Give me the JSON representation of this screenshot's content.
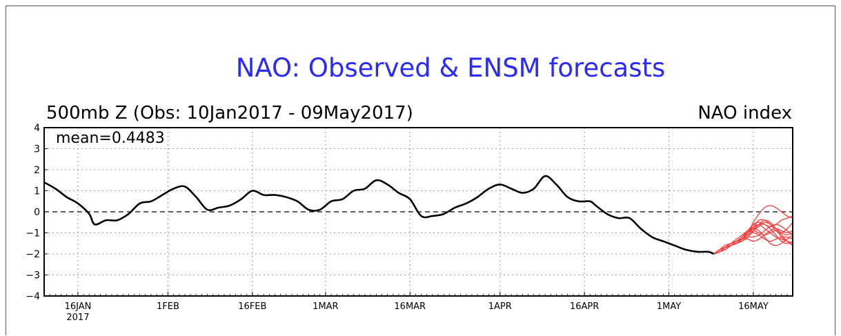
{
  "chart_data": {
    "type": "line",
    "title": "NAO: Observed & ENSM forecasts",
    "subtitle_left": "500mb Z (Obs: 10Jan2017 - 09May2017)",
    "subtitle_right": "NAO index",
    "annotation": "mean=0.4483",
    "ylim": [
      -4,
      4
    ],
    "yticks": [
      "4",
      "3",
      "2",
      "1",
      "0",
      "−1",
      "−2",
      "−3",
      "−4"
    ],
    "ytick_values": [
      4,
      3,
      2,
      1,
      0,
      -1,
      -2,
      -3,
      -4
    ],
    "xlim": [
      "2017-01-10",
      "2017-05-23"
    ],
    "xticks": [
      {
        "date": "2017-01-16",
        "label": "16JAN",
        "sublabel": "2017"
      },
      {
        "date": "2017-02-01",
        "label": "1FEB",
        "sublabel": ""
      },
      {
        "date": "2017-02-16",
        "label": "16FEB",
        "sublabel": ""
      },
      {
        "date": "2017-03-01",
        "label": "1MAR",
        "sublabel": ""
      },
      {
        "date": "2017-03-16",
        "label": "16MAR",
        "sublabel": ""
      },
      {
        "date": "2017-04-01",
        "label": "1APR",
        "sublabel": ""
      },
      {
        "date": "2017-04-16",
        "label": "16APR",
        "sublabel": ""
      },
      {
        "date": "2017-05-01",
        "label": "1MAY",
        "sublabel": ""
      },
      {
        "date": "2017-05-16",
        "label": "16MAY",
        "sublabel": ""
      }
    ],
    "grid": true,
    "zero_line": "dashed",
    "colors": {
      "title": "#2a2aff",
      "observed": "#000000",
      "forecast": "#ff3b3b",
      "grid": "#9a9a9a"
    },
    "series": [
      {
        "x": [
          "2017-01-10",
          "2017-01-12",
          "2017-01-14",
          "2017-01-16",
          "2017-01-18",
          "2017-01-19",
          "2017-01-21",
          "2017-01-23",
          "2017-01-25",
          "2017-01-27",
          "2017-01-29",
          "2017-01-31",
          "2017-02-02",
          "2017-02-04",
          "2017-02-06",
          "2017-02-08",
          "2017-02-10",
          "2017-02-12",
          "2017-02-14",
          "2017-02-16",
          "2017-02-18",
          "2017-02-20",
          "2017-02-22",
          "2017-02-24",
          "2017-02-26",
          "2017-02-28",
          "2017-03-02",
          "2017-03-04",
          "2017-03-06",
          "2017-03-08",
          "2017-03-10",
          "2017-03-12",
          "2017-03-14",
          "2017-03-16",
          "2017-03-18",
          "2017-03-20",
          "2017-03-22",
          "2017-03-24",
          "2017-03-26",
          "2017-03-28",
          "2017-03-30",
          "2017-04-01",
          "2017-04-03",
          "2017-04-05",
          "2017-04-07",
          "2017-04-09",
          "2017-04-11",
          "2017-04-13",
          "2017-04-15",
          "2017-04-17",
          "2017-04-18",
          "2017-04-20",
          "2017-04-22",
          "2017-04-24",
          "2017-04-26",
          "2017-04-28",
          "2017-04-30",
          "2017-05-02",
          "2017-05-04",
          "2017-05-06",
          "2017-05-08",
          "2017-05-09"
        ],
        "values": [
          1.4,
          1.1,
          0.7,
          0.4,
          -0.1,
          -0.6,
          -0.4,
          -0.4,
          -0.1,
          0.4,
          0.5,
          0.8,
          1.1,
          1.2,
          0.7,
          0.1,
          0.2,
          0.3,
          0.6,
          1.0,
          0.8,
          0.8,
          0.7,
          0.5,
          0.1,
          0.1,
          0.5,
          0.6,
          1.0,
          1.1,
          1.5,
          1.3,
          0.9,
          0.6,
          -0.2,
          -0.2,
          -0.1,
          0.2,
          0.4,
          0.7,
          1.1,
          1.3,
          1.1,
          0.9,
          1.1,
          1.7,
          1.3,
          0.7,
          0.5,
          0.5,
          0.3,
          -0.1,
          -0.3,
          -0.3,
          -0.8,
          -1.2,
          -1.4,
          -1.6,
          -1.8,
          -1.9,
          -1.9,
          -2.0
        ]
      },
      {
        "x": [
          "2017-05-09",
          "2017-05-10",
          "2017-05-11",
          "2017-05-12",
          "2017-05-13",
          "2017-05-14",
          "2017-05-15",
          "2017-05-16",
          "2017-05-17",
          "2017-05-18",
          "2017-05-19",
          "2017-05-20",
          "2017-05-21",
          "2017-05-22",
          "2017-05-23"
        ],
        "members": [
          [
            -2.0,
            -1.8,
            -1.7,
            -1.6,
            -1.5,
            -1.3,
            -1.0,
            -0.5,
            -0.1,
            0.2,
            0.3,
            0.2,
            0.0,
            -0.2,
            -0.3
          ],
          [
            -2.0,
            -1.8,
            -1.7,
            -1.6,
            -1.5,
            -1.2,
            -0.9,
            -0.6,
            -0.5,
            -0.6,
            -0.7,
            -0.6,
            -0.4,
            -0.3,
            -0.2
          ],
          [
            -2.0,
            -1.9,
            -1.7,
            -1.6,
            -1.5,
            -1.3,
            -1.1,
            -0.9,
            -0.7,
            -0.5,
            -0.6,
            -0.8,
            -1.0,
            -1.1,
            -1.0
          ],
          [
            -2.0,
            -1.8,
            -1.6,
            -1.5,
            -1.4,
            -1.2,
            -1.0,
            -0.8,
            -0.6,
            -0.8,
            -1.0,
            -1.2,
            -1.3,
            -1.4,
            -1.5
          ],
          [
            -2.0,
            -1.8,
            -1.7,
            -1.6,
            -1.5,
            -1.3,
            -1.1,
            -1.0,
            -1.1,
            -1.3,
            -1.4,
            -1.3,
            -1.2,
            -1.2,
            -1.3
          ],
          [
            -2.0,
            -1.9,
            -1.8,
            -1.6,
            -1.5,
            -1.3,
            -1.2,
            -1.2,
            -1.1,
            -0.9,
            -0.7,
            -0.6,
            -0.7,
            -0.9,
            -1.1
          ],
          [
            -2.0,
            -1.8,
            -1.7,
            -1.6,
            -1.4,
            -1.2,
            -0.9,
            -0.7,
            -0.6,
            -0.6,
            -0.8,
            -1.1,
            -1.4,
            -1.5,
            -1.4
          ],
          [
            -2.0,
            -1.9,
            -1.7,
            -1.5,
            -1.3,
            -1.1,
            -0.9,
            -0.8,
            -0.9,
            -1.2,
            -1.5,
            -1.6,
            -1.5,
            -1.3,
            -1.1
          ],
          [
            -2.0,
            -1.8,
            -1.6,
            -1.5,
            -1.4,
            -1.3,
            -1.3,
            -1.4,
            -1.3,
            -1.1,
            -0.9,
            -0.8,
            -0.9,
            -1.0,
            -0.9
          ],
          [
            -2.0,
            -1.8,
            -1.7,
            -1.6,
            -1.5,
            -1.4,
            -1.2,
            -0.9,
            -0.6,
            -0.4,
            -0.5,
            -0.8,
            -1.2,
            -1.4,
            -1.6
          ],
          [
            -2.0,
            -1.9,
            -1.8,
            -1.6,
            -1.4,
            -1.2,
            -1.0,
            -0.9,
            -1.0,
            -1.1,
            -1.0,
            -0.9,
            -1.1,
            -1.4,
            -1.6
          ],
          [
            -2.0,
            -1.8,
            -1.7,
            -1.5,
            -1.4,
            -1.2,
            -1.0,
            -0.7,
            -0.4,
            -0.4,
            -0.6,
            -0.9,
            -1.0,
            -0.8,
            -0.5
          ]
        ]
      }
    ]
  }
}
